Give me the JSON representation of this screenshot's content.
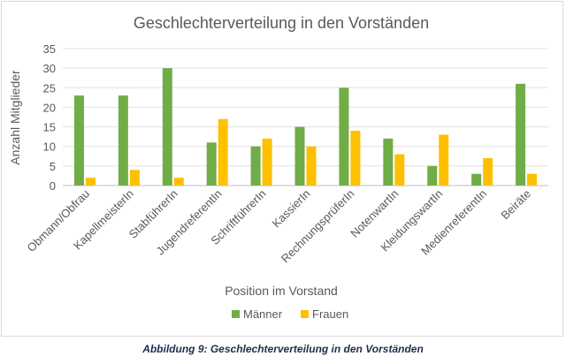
{
  "chart_data": {
    "type": "bar",
    "title": "Geschlechterverteilung in den Vorständen",
    "xlabel": "Position im Vorstand",
    "ylabel": "Anzahl Mitglieder",
    "ylim": [
      0,
      35
    ],
    "yticks": [
      0,
      5,
      10,
      15,
      20,
      25,
      30,
      35
    ],
    "grid": true,
    "legend_position": "bottom",
    "categories": [
      "Obmann/Obfrau",
      "KapellmeisterIn",
      "StabführerIn",
      "JugendreferentIn",
      "SchriftführerIn",
      "KassierIn",
      "RechnungsprüferIn",
      "NotenwartIn",
      "KleidungswartIn",
      "MedienreferentIn",
      "Beiräte"
    ],
    "series": [
      {
        "name": "Männer",
        "color": "#70ad47",
        "values": [
          23,
          23,
          30,
          11,
          10,
          15,
          25,
          12,
          5,
          3,
          26
        ]
      },
      {
        "name": "Frauen",
        "color": "#ffc000",
        "values": [
          2,
          4,
          2,
          17,
          12,
          10,
          14,
          8,
          13,
          7,
          3
        ]
      }
    ]
  },
  "caption": "Abbildung 9: Geschlechterverteilung in den Vorständen"
}
